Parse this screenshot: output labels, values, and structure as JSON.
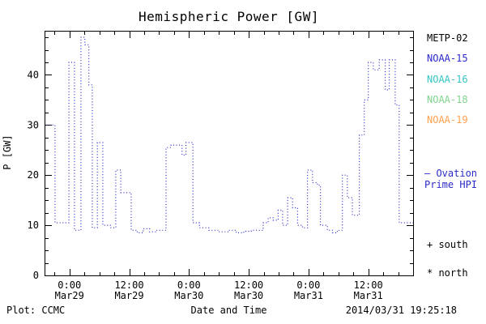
{
  "chart": {
    "title": "Hemispheric Power [GW]",
    "ylabel": "P [GW]",
    "xlabel": "Date and Time",
    "footer_left": "Plot: CCMC",
    "footer_right": "2014/03/31 19:25:18"
  },
  "legend": {
    "satellites": [
      {
        "label": "METP-02",
        "color": "#000000"
      },
      {
        "label": "NOAA-15",
        "color": "#2b2bc8"
      },
      {
        "label": "NOAA-16",
        "color": "#35c4c4"
      },
      {
        "label": "NOAA-18",
        "color": "#7fd48c"
      },
      {
        "label": "NOAA-19",
        "color": "#ffa04d"
      }
    ],
    "model_line1": "— Ovation",
    "model_line2": "Prime HPI",
    "model_color": "#2b2bc8",
    "south_label": "+ south",
    "north_label": "* north"
  },
  "chart_data": {
    "type": "line",
    "style": "dotted-step",
    "title": "Hemispheric Power [GW]",
    "xlabel": "Date and Time",
    "ylabel": "P [GW]",
    "line_color": "#2b2bc8",
    "grid": false,
    "legend_position": "right-outside",
    "ylim": [
      0,
      48.8
    ],
    "yticks": [
      0,
      10,
      20,
      30,
      40
    ],
    "y_minor_step": 2.5,
    "xlim_hours": [
      0,
      74
    ],
    "x_minor_hours": 3,
    "xticks": [
      {
        "t": 5,
        "line1": "0:00",
        "line2": "Mar29"
      },
      {
        "t": 17,
        "line1": "12:00",
        "line2": "Mar29"
      },
      {
        "t": 29,
        "line1": "0:00",
        "line2": "Mar30"
      },
      {
        "t": 41,
        "line1": "12:00",
        "line2": "Mar30"
      },
      {
        "t": 53,
        "line1": "0:00",
        "line2": "Mar31"
      },
      {
        "t": 65,
        "line1": "12:00",
        "line2": "Mar31"
      }
    ],
    "t_end": 74,
    "points": [
      [
        0.4,
        30.0
      ],
      [
        2.1,
        10.5
      ],
      [
        4.9,
        42.5
      ],
      [
        6.0,
        9.0
      ],
      [
        7.3,
        47.5
      ],
      [
        8.1,
        46.0
      ],
      [
        8.9,
        38.0
      ],
      [
        9.6,
        9.5
      ],
      [
        10.6,
        26.5
      ],
      [
        11.7,
        10.0
      ],
      [
        13.2,
        9.5
      ],
      [
        14.3,
        21.0
      ],
      [
        15.3,
        16.5
      ],
      [
        17.4,
        9.0
      ],
      [
        18.6,
        8.5
      ],
      [
        19.8,
        9.3
      ],
      [
        21.1,
        8.7
      ],
      [
        22.4,
        9.0
      ],
      [
        24.4,
        25.5
      ],
      [
        25.4,
        26.0
      ],
      [
        27.6,
        24.0
      ],
      [
        28.4,
        26.5
      ],
      [
        29.8,
        10.5
      ],
      [
        31.1,
        9.5
      ],
      [
        33.0,
        9.0
      ],
      [
        35.0,
        8.7
      ],
      [
        37.0,
        9.0
      ],
      [
        38.5,
        8.5
      ],
      [
        40.0,
        8.8
      ],
      [
        41.5,
        9.0
      ],
      [
        43.9,
        10.5
      ],
      [
        44.9,
        11.5
      ],
      [
        45.9,
        11.0
      ],
      [
        46.9,
        13.0
      ],
      [
        47.8,
        10.0
      ],
      [
        48.8,
        15.5
      ],
      [
        49.8,
        13.5
      ],
      [
        50.8,
        10.0
      ],
      [
        51.8,
        9.5
      ],
      [
        52.8,
        21.0
      ],
      [
        53.8,
        18.5
      ],
      [
        54.8,
        18.0
      ],
      [
        55.4,
        10.0
      ],
      [
        56.8,
        9.0
      ],
      [
        57.8,
        8.5
      ],
      [
        58.8,
        9.0
      ],
      [
        59.8,
        20.0
      ],
      [
        60.8,
        15.5
      ],
      [
        61.8,
        12.0
      ],
      [
        63.2,
        28.0
      ],
      [
        64.2,
        35.0
      ],
      [
        65.0,
        42.5
      ],
      [
        66.0,
        41.0
      ],
      [
        67.2,
        43.0
      ],
      [
        68.4,
        37.0
      ],
      [
        69.2,
        43.0
      ],
      [
        70.4,
        34.0
      ],
      [
        71.2,
        10.5
      ]
    ]
  }
}
